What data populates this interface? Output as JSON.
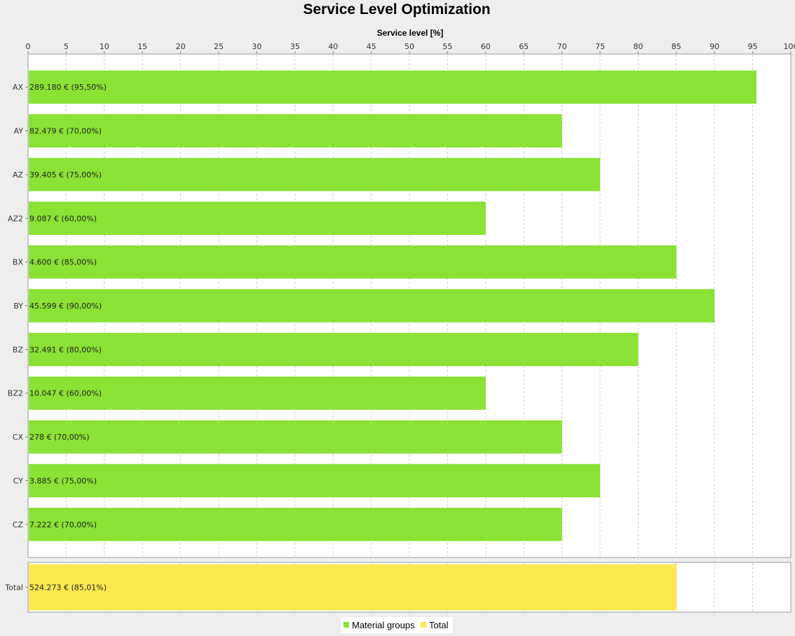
{
  "chart_data": {
    "type": "bar",
    "orientation": "horizontal",
    "title": "Service Level Optimization",
    "xlabel": "Service level [%]",
    "xlim": [
      0,
      100
    ],
    "xticks": [
      0,
      5,
      10,
      15,
      20,
      25,
      30,
      35,
      40,
      45,
      50,
      55,
      60,
      65,
      70,
      75,
      80,
      85,
      90,
      95,
      100
    ],
    "grid": true,
    "series": [
      {
        "name": "Material groups",
        "color": "#8ae234",
        "categories": [
          "AX",
          "AY",
          "AZ",
          "AZ2",
          "BX",
          "BY",
          "BZ",
          "BZ2",
          "CX",
          "CY",
          "CZ"
        ],
        "values": [
          95.5,
          70,
          75,
          60,
          85,
          90,
          80,
          60,
          70,
          75,
          70
        ],
        "labels": [
          "289.180 € (95,50%)",
          "82.479 € (70,00%)",
          "39.405 € (75,00%)",
          "9.087 € (60,00%)",
          "4.600 € (85,00%)",
          "45.599 € (90,00%)",
          "32.491 € (80,00%)",
          "10.047 € (60,00%)",
          "278 € (70,00%)",
          "3.885 € (75,00%)",
          "7.222 € (70,00%)"
        ]
      },
      {
        "name": "Total",
        "color": "#fce94f",
        "categories": [
          "Total"
        ],
        "values": [
          85.01
        ],
        "labels": [
          "524.273 € (85,01%)"
        ]
      }
    ],
    "legend": {
      "position": "bottom",
      "items": [
        {
          "label": "Material groups",
          "color": "#8ae234"
        },
        {
          "label": "Total",
          "color": "#fce94f"
        }
      ]
    }
  }
}
